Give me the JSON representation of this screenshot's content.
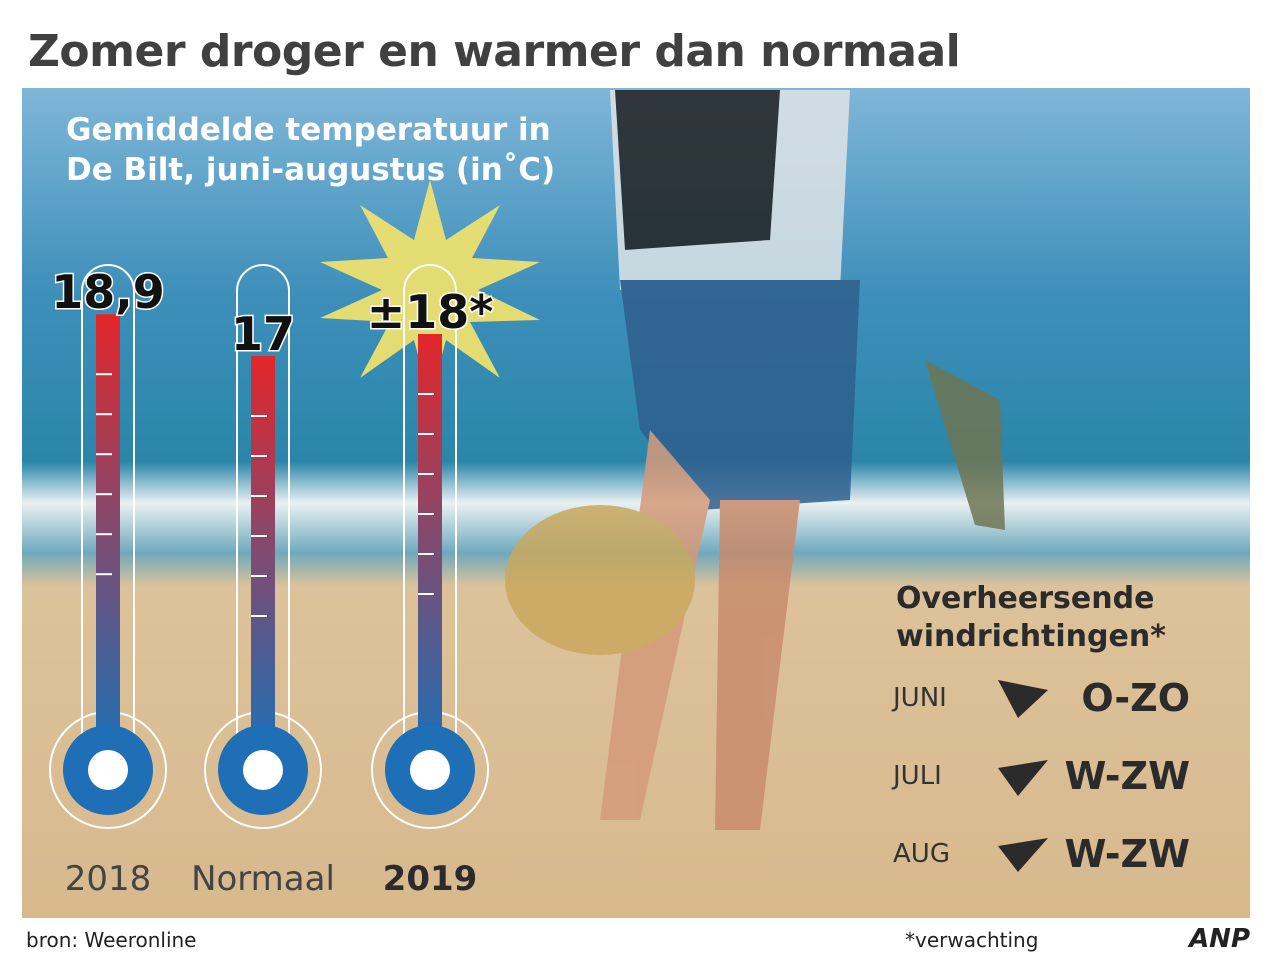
{
  "chart_data": {
    "type": "bar",
    "title": "Zomer droger en warmer dan normaal",
    "subtitle": "Gemiddelde temperatuur in De Bilt, juni-augustus (in˚C)",
    "categories": [
      "2018",
      "Normaal",
      "2019"
    ],
    "values": [
      18.9,
      17,
      18
    ],
    "value_labels": [
      "18,9",
      "17",
      "±18*"
    ],
    "color": "#e3262a",
    "ylim": [
      0,
      20
    ]
  },
  "wind": {
    "title": "Overheersende windrichtingen*",
    "rows": [
      {
        "month": "JUNI",
        "direction": "O-ZO"
      },
      {
        "month": "JULI",
        "direction": "W-ZW"
      },
      {
        "month": "AUG",
        "direction": "W-ZW"
      }
    ]
  },
  "footer": {
    "source": "bron: Weeronline",
    "note": "*verwachting",
    "agency": "ANP"
  }
}
